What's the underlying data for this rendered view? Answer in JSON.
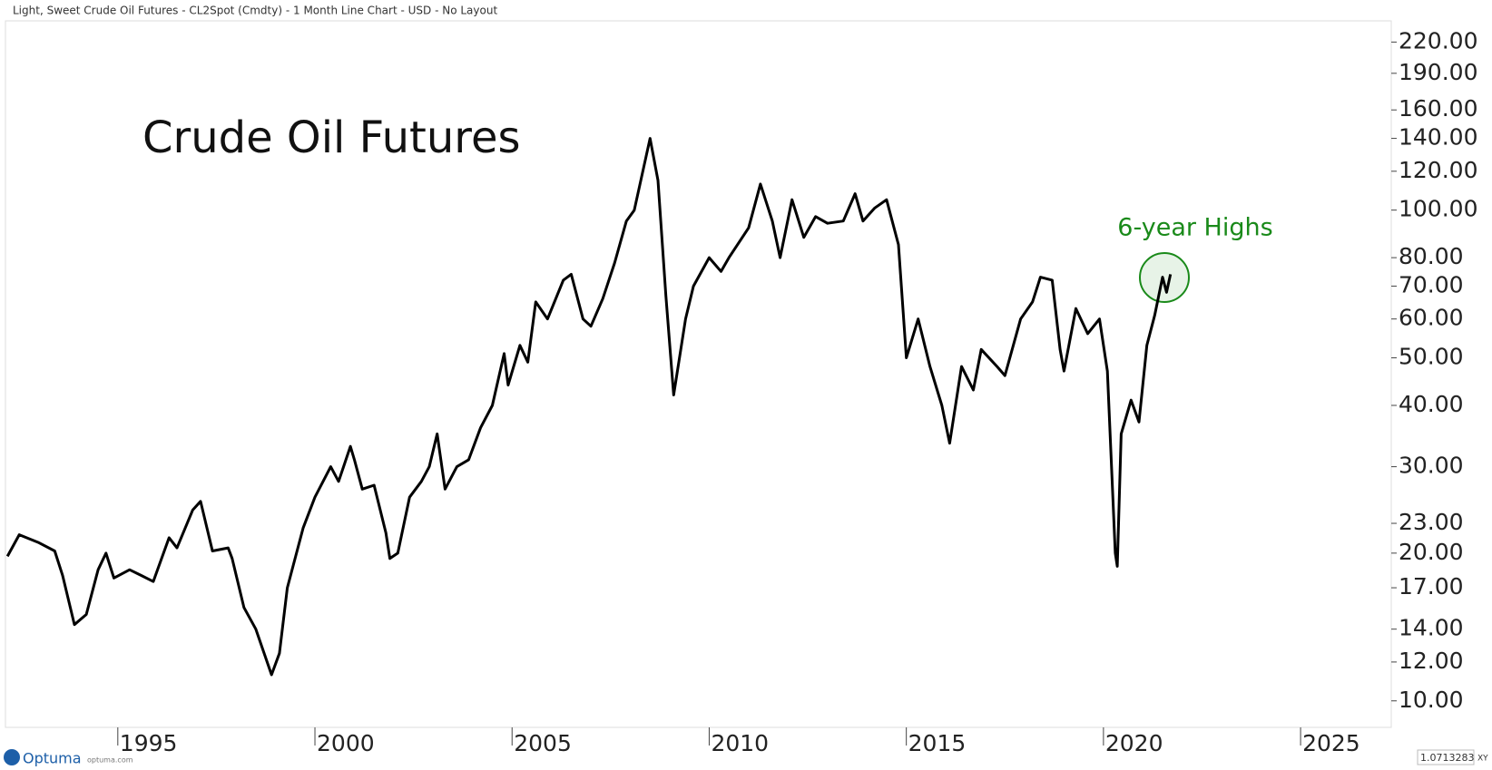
{
  "header": {
    "title": "Light, Sweet Crude Oil Futures - CL2Spot (Cmdty) - 1 Month Line Chart - USD - No Layout"
  },
  "footer": {
    "brand": "Optuma",
    "site": "optuma.com",
    "scale": "1.0713283",
    "mode": "XY"
  },
  "chart_data": {
    "type": "line",
    "title": "Crude Oil Futures",
    "annotations": [
      "6-year Highs"
    ],
    "color": "#000000",
    "log_y": true,
    "x": [
      1992.2,
      1992.5,
      1993.0,
      1993.4,
      1993.6,
      1993.9,
      1994.2,
      1994.5,
      1994.7,
      1994.9,
      1995.3,
      1995.6,
      1995.9,
      1996.3,
      1996.5,
      1996.9,
      1997.1,
      1997.4,
      1997.8,
      1997.9,
      1998.2,
      1998.5,
      1998.9,
      1999.1,
      1999.3,
      1999.7,
      2000.0,
      2000.4,
      2000.6,
      2000.9,
      2001.0,
      2001.2,
      2001.5,
      2001.8,
      2001.9,
      2002.1,
      2002.4,
      2002.7,
      2002.9,
      2003.1,
      2003.3,
      2003.6,
      2003.9,
      2004.2,
      2004.5,
      2004.8,
      2004.9,
      2005.2,
      2005.4,
      2005.6,
      2005.9,
      2006.3,
      2006.5,
      2006.8,
      2007.0,
      2007.3,
      2007.6,
      2007.9,
      2008.1,
      2008.5,
      2008.7,
      2008.9,
      2009.1,
      2009.4,
      2009.6,
      2010.0,
      2010.3,
      2010.5,
      2011.0,
      2011.3,
      2011.6,
      2011.8,
      2012.1,
      2012.4,
      2012.7,
      2013.0,
      2013.4,
      2013.7,
      2013.9,
      2014.2,
      2014.5,
      2014.8,
      2015.0,
      2015.3,
      2015.6,
      2015.9,
      2016.1,
      2016.4,
      2016.7,
      2016.9,
      2017.3,
      2017.5,
      2017.9,
      2018.2,
      2018.4,
      2018.7,
      2018.9,
      2019.0,
      2019.3,
      2019.6,
      2019.9,
      2020.1,
      2020.3,
      2020.35,
      2020.45,
      2020.7,
      2020.9,
      2021.1,
      2021.3,
      2021.5,
      2021.6,
      2021.7
    ],
    "values": [
      19.7,
      21.8,
      21.0,
      20.2,
      18.0,
      14.3,
      15.0,
      18.5,
      20.0,
      17.8,
      18.5,
      18.0,
      17.5,
      21.5,
      20.5,
      24.5,
      25.5,
      20.2,
      20.5,
      19.5,
      15.5,
      14.0,
      11.3,
      12.5,
      17.0,
      22.5,
      26.0,
      30.0,
      28.0,
      33.0,
      31.0,
      27.0,
      27.5,
      22.0,
      19.5,
      20.0,
      26.0,
      28.0,
      30.0,
      35.0,
      27.0,
      30.0,
      31.0,
      36.0,
      40.0,
      51.0,
      44.0,
      53.0,
      49.0,
      65.0,
      60.0,
      72.0,
      74.0,
      60.0,
      58.0,
      66.0,
      78.0,
      95.0,
      100.0,
      140.0,
      115.0,
      67.0,
      42.0,
      60.0,
      70.0,
      80.0,
      75.0,
      80.0,
      92.0,
      113.0,
      95.0,
      80.0,
      105.0,
      88.0,
      97.0,
      94.0,
      95.0,
      108.0,
      95.0,
      101.0,
      105.0,
      85.0,
      50.0,
      60.0,
      48.0,
      40.0,
      33.5,
      48.0,
      43.0,
      52.0,
      48.0,
      46.0,
      60.0,
      65.0,
      73.0,
      72.0,
      52.0,
      47.0,
      63.0,
      56.0,
      60.0,
      47.0,
      20.0,
      18.8,
      35.0,
      41.0,
      37.0,
      53.0,
      61.0,
      73.0,
      68.0,
      74.0
    ],
    "xlim": [
      1992.15,
      2027.3
    ],
    "xticks": [
      1995,
      2000,
      2005,
      2010,
      2015,
      2020,
      2025
    ],
    "ylim": [
      8.83,
      243
    ],
    "yticks": [
      {
        "value": 10,
        "label": "10.00"
      },
      {
        "value": 12,
        "label": "12.00"
      },
      {
        "value": 14,
        "label": "14.00"
      },
      {
        "value": 17,
        "label": "17.00"
      },
      {
        "value": 20,
        "label": "20.00"
      },
      {
        "value": 23,
        "label": "23.00"
      },
      {
        "value": 30,
        "label": "30.00"
      },
      {
        "value": 40,
        "label": "40.00"
      },
      {
        "value": 50,
        "label": "50.00"
      },
      {
        "value": 60,
        "label": "60.00"
      },
      {
        "value": 70,
        "label": "70.00"
      },
      {
        "value": 80,
        "label": "80.00"
      },
      {
        "value": 100,
        "label": "100.00"
      },
      {
        "value": 120,
        "label": "120.00"
      },
      {
        "value": 140,
        "label": "140.00"
      },
      {
        "value": 160,
        "label": "160.00"
      },
      {
        "value": 190,
        "label": "190.00"
      },
      {
        "value": 220,
        "label": "220.00"
      }
    ]
  }
}
